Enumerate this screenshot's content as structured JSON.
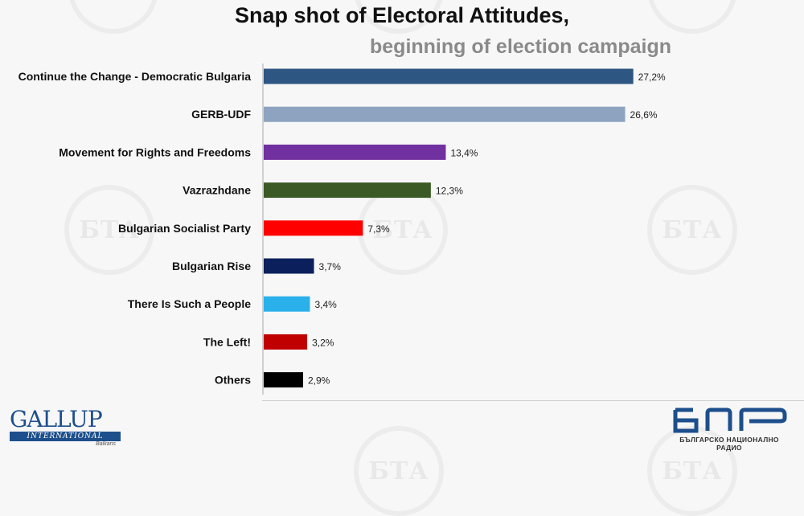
{
  "header": {
    "title": "Snap shot of Electoral Attitudes,",
    "subtitle": "beginning of election campaign"
  },
  "watermark": "БТА",
  "branding": {
    "gallup_name": "GALLUP",
    "gallup_sub": "INTERNATIONAL",
    "gallup_region": "Balkans",
    "bnr_caption": "БЪЛГАРСКО НАЦИОНАЛНО РАДИО",
    "brand_color": "#1d4f8c"
  },
  "chart_data": {
    "type": "bar",
    "orientation": "horizontal",
    "title": "Snap shot of Electoral Attitudes,",
    "subtitle": "beginning of election campaign",
    "xlabel": "",
    "ylabel": "",
    "value_suffix": "%",
    "xlim": [
      0,
      30
    ],
    "grid": false,
    "categories": [
      "Continue the Change - Democratic Bulgaria",
      "GERB-UDF",
      "Movement for Rights and Freedoms",
      "Vazrazhdane",
      "Bulgarian Socialist Party",
      "Bulgarian Rise",
      "There Is Such a People",
      "The Left!",
      "Others"
    ],
    "values": [
      27.2,
      26.6,
      13.4,
      12.3,
      7.3,
      3.7,
      3.4,
      3.2,
      2.9
    ],
    "labels": [
      "27,2%",
      "26,6%",
      "13,4%",
      "12,3%",
      "7,3%",
      "3,7%",
      "3,4%",
      "3,2%",
      "2,9%"
    ],
    "colors": [
      "#2e5683",
      "#8da3c0",
      "#7030a0",
      "#3c5a25",
      "#ff0000",
      "#0b1f5c",
      "#2ab0ea",
      "#c00000",
      "#000000"
    ]
  }
}
